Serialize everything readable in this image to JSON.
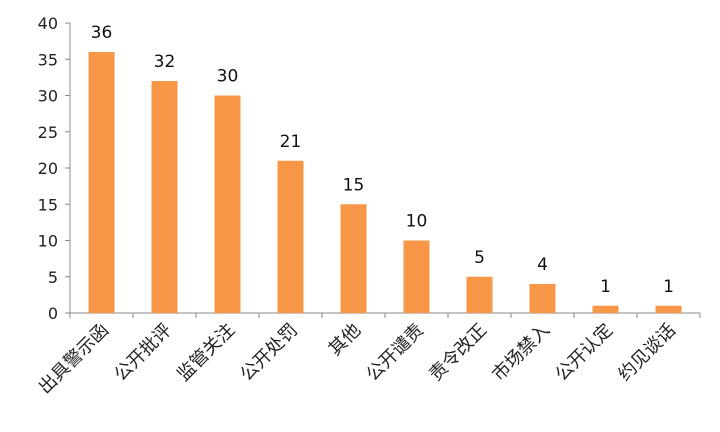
{
  "chart_data": {
    "type": "bar",
    "categories": [
      "出具警示函",
      "公开批评",
      "监管关注",
      "公开处罚",
      "其他",
      "公开谴责",
      "责令改正",
      "市场禁入",
      "公开认定",
      "约见谈话"
    ],
    "values": [
      36,
      32,
      30,
      21,
      15,
      10,
      5,
      4,
      1,
      1
    ],
    "ylim": [
      0,
      40
    ],
    "yticks": [
      0,
      5,
      10,
      15,
      20,
      25,
      30,
      35,
      40
    ],
    "bar_color": "#F79646",
    "axis_color": "#888888",
    "grid": false,
    "legend": "none",
    "xtick_rotation": "-45deg"
  }
}
